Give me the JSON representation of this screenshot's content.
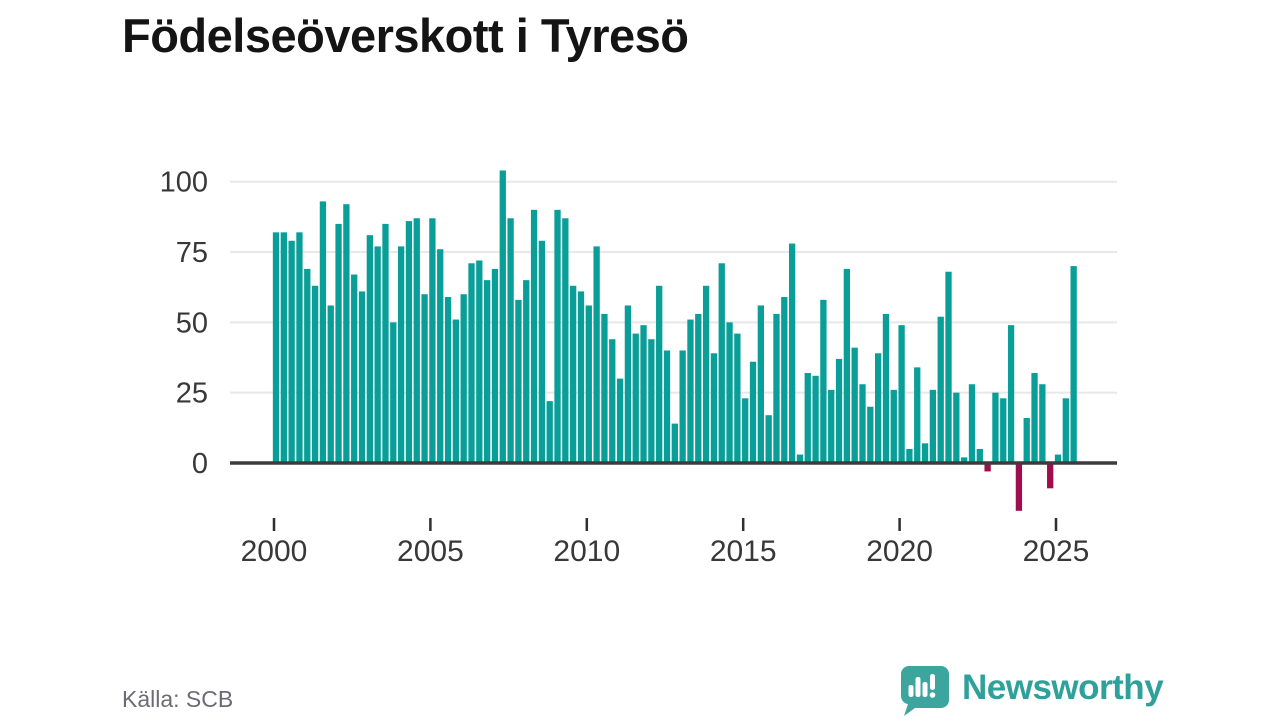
{
  "title": "Födelseöverskott i Tyresö",
  "source": {
    "label": "Källa: SCB"
  },
  "brand": {
    "name": "Newsworthy",
    "text_color": "#2da19a",
    "bubble_color": "#3ca59e"
  },
  "colors": {
    "positive_bar": "#0a9e98",
    "negative_bar": "#a00d4c",
    "gridline": "#e8e8e8",
    "zero_axis": "#3c3c3c",
    "tick": "#2f2f2f",
    "axis_text": "#383838",
    "title_text": "#141414",
    "source_text": "#6b6b73"
  },
  "chart_data": {
    "type": "bar",
    "title": "Födelseöverskott i Tyresö",
    "xlabel": "",
    "ylabel": "",
    "x_unit": "quarter",
    "grid": "horizontal",
    "legend": "none",
    "ylim": [
      -20,
      106
    ],
    "yticks": [
      0,
      25,
      50,
      75,
      100
    ],
    "xticks": [
      2000,
      2005,
      2010,
      2015,
      2020,
      2025
    ],
    "xtick_labels": [
      "2000",
      "2005",
      "2010",
      "2015",
      "2020",
      "2025"
    ],
    "categories": [
      "2000 Q1",
      "2000 Q2",
      "2000 Q3",
      "2000 Q4",
      "2001 Q1",
      "2001 Q2",
      "2001 Q3",
      "2001 Q4",
      "2002 Q1",
      "2002 Q2",
      "2002 Q3",
      "2002 Q4",
      "2003 Q1",
      "2003 Q2",
      "2003 Q3",
      "2003 Q4",
      "2004 Q1",
      "2004 Q2",
      "2004 Q3",
      "2004 Q4",
      "2005 Q1",
      "2005 Q2",
      "2005 Q3",
      "2005 Q4",
      "2006 Q1",
      "2006 Q2",
      "2006 Q3",
      "2006 Q4",
      "2007 Q1",
      "2007 Q2",
      "2007 Q3",
      "2007 Q4",
      "2008 Q1",
      "2008 Q2",
      "2008 Q3",
      "2008 Q4",
      "2009 Q1",
      "2009 Q2",
      "2009 Q3",
      "2009 Q4",
      "2010 Q1",
      "2010 Q2",
      "2010 Q3",
      "2010 Q4",
      "2011 Q1",
      "2011 Q2",
      "2011 Q3",
      "2011 Q4",
      "2012 Q1",
      "2012 Q2",
      "2012 Q3",
      "2012 Q4",
      "2013 Q1",
      "2013 Q2",
      "2013 Q3",
      "2013 Q4",
      "2014 Q1",
      "2014 Q2",
      "2014 Q3",
      "2014 Q4",
      "2015 Q1",
      "2015 Q2",
      "2015 Q3",
      "2015 Q4",
      "2016 Q1",
      "2016 Q2",
      "2016 Q3",
      "2016 Q4",
      "2017 Q1",
      "2017 Q2",
      "2017 Q3",
      "2017 Q4",
      "2018 Q1",
      "2018 Q2",
      "2018 Q3",
      "2018 Q4",
      "2019 Q1",
      "2019 Q2",
      "2019 Q3",
      "2019 Q4",
      "2020 Q1",
      "2020 Q2",
      "2020 Q3",
      "2020 Q4",
      "2021 Q1",
      "2021 Q2",
      "2021 Q3",
      "2021 Q4",
      "2022 Q1",
      "2022 Q2",
      "2022 Q3",
      "2022 Q4",
      "2023 Q1",
      "2023 Q2",
      "2023 Q3",
      "2023 Q4",
      "2024 Q1",
      "2024 Q2",
      "2024 Q3",
      "2024 Q4",
      "2025 Q1",
      "2025 Q2",
      "2025 Q3"
    ],
    "values": [
      82,
      82,
      79,
      82,
      69,
      63,
      93,
      56,
      85,
      92,
      67,
      61,
      81,
      77,
      85,
      50,
      77,
      86,
      87,
      60,
      87,
      76,
      59,
      51,
      60,
      71,
      72,
      65,
      69,
      104,
      87,
      58,
      65,
      90,
      79,
      22,
      90,
      87,
      63,
      61,
      56,
      77,
      53,
      44,
      30,
      56,
      46,
      49,
      44,
      63,
      40,
      14,
      40,
      51,
      53,
      63,
      39,
      71,
      50,
      46,
      23,
      36,
      56,
      17,
      53,
      59,
      78,
      3,
      32,
      31,
      58,
      26,
      37,
      69,
      41,
      28,
      20,
      39,
      53,
      26,
      49,
      5,
      34,
      7,
      26,
      52,
      68,
      25,
      2,
      28,
      5,
      -3,
      25,
      23,
      49,
      -17,
      16,
      32,
      28,
      -9,
      3,
      23,
      70
    ]
  }
}
